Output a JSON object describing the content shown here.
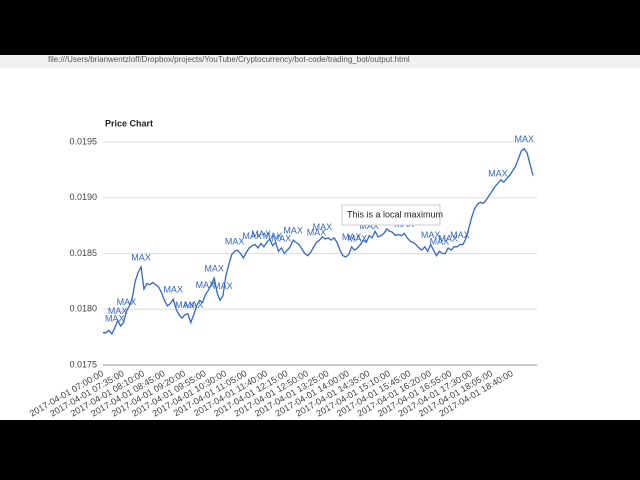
{
  "browser": {
    "url": "file:///Users/brianwentzloff/Dropbox/projects/YouTube/Cryptocurrency/bot-code/trading_bot/output.html"
  },
  "chart_data": {
    "type": "line",
    "title": "Price Chart",
    "tooltip": "This is a local maximum",
    "color": "#3366cc",
    "grid": true,
    "ylim": [
      0.0175,
      0.0195
    ],
    "yticks": [
      0.0175,
      {
        "value": 0.018,
        "label": "0.0180"
      },
      0.0185,
      {
        "value": 0.019,
        "label": "0.0190"
      },
      0.0195
    ],
    "categories": [
      "2017-04-01 07:00:00",
      null,
      null,
      null,
      null,
      null,
      null,
      "2017-04-01 07:35:00",
      null,
      null,
      null,
      null,
      null,
      null,
      "2017-04-01 08:10:00",
      null,
      null,
      null,
      null,
      null,
      null,
      "2017-04-01 08:45:00",
      null,
      null,
      null,
      null,
      null,
      null,
      "2017-04-01 09:20:00",
      null,
      null,
      null,
      null,
      null,
      null,
      "2017-04-01 09:55:00",
      null,
      null,
      null,
      null,
      null,
      null,
      "2017-04-01 10:30:00",
      null,
      null,
      null,
      null,
      null,
      null,
      "2017-04-01 11:05:00",
      null,
      null,
      null,
      null,
      null,
      null,
      "2017-04-01 11:40:00",
      null,
      null,
      null,
      null,
      null,
      null,
      "2017-04-01 12:15:00",
      null,
      null,
      null,
      null,
      null,
      null,
      "2017-04-01 12:50:00",
      null,
      null,
      null,
      null,
      null,
      null,
      "2017-04-01 13:25:00",
      null,
      null,
      null,
      null,
      null,
      null,
      "2017-04-01 14:00:00",
      null,
      null,
      null,
      null,
      null,
      null,
      "2017-04-01 14:35:00",
      null,
      null,
      null,
      null,
      null,
      null,
      "2017-04-01 15:10:00",
      null,
      null,
      null,
      null,
      null,
      null,
      "2017-04-01 15:45:00",
      null,
      null,
      null,
      null,
      null,
      null,
      "2017-04-01 16:20:00",
      null,
      null,
      null,
      null,
      null,
      null,
      "2017-04-01 16:55:00",
      null,
      null,
      null,
      null,
      null,
      null,
      "2017-04-01 17:30:00",
      null,
      null,
      null,
      null,
      null,
      null,
      "2017-04-01 18:05:00",
      null,
      null,
      null,
      null,
      null,
      null,
      "2017-04-01 18:40:00",
      null,
      null,
      null,
      null,
      null,
      null,
      null
    ],
    "values": [
      0.01779,
      0.01779,
      0.01781,
      0.01778,
      0.01783,
      0.0179,
      0.01785,
      0.01788,
      0.01798,
      0.01803,
      0.0181,
      0.01825,
      0.01833,
      0.01838,
      0.01818,
      0.01823,
      0.01822,
      0.01824,
      0.01822,
      0.0182,
      0.01815,
      0.01808,
      0.01803,
      0.01805,
      0.01809,
      0.018,
      0.01795,
      0.01792,
      0.01795,
      0.01796,
      0.01788,
      0.01795,
      0.01803,
      0.01808,
      0.01806,
      0.01813,
      0.01817,
      0.01822,
      0.01828,
      0.01815,
      0.01808,
      0.01812,
      0.0183,
      0.0184,
      0.01849,
      0.01852,
      0.01853,
      0.0185,
      0.01846,
      0.01851,
      0.01855,
      0.01857,
      0.01858,
      0.01855,
      0.01859,
      0.01856,
      0.0186,
      0.01863,
      0.01857,
      0.0186,
      0.01852,
      0.01855,
      0.0185,
      0.01853,
      0.01856,
      0.01862,
      0.0186,
      0.01858,
      0.01854,
      0.0185,
      0.01848,
      0.01851,
      0.01856,
      0.0186,
      0.01862,
      0.01865,
      0.01863,
      0.01864,
      0.01862,
      0.01864,
      0.0186,
      0.01853,
      0.01848,
      0.01847,
      0.01849,
      0.01856,
      0.01853,
      0.01855,
      0.01858,
      0.01862,
      0.0186,
      0.01866,
      0.01864,
      0.0187,
      0.01865,
      0.01866,
      0.01868,
      0.01872,
      0.0187,
      0.01869,
      0.01866,
      0.01867,
      0.01866,
      0.01868,
      0.01864,
      0.01861,
      0.0186,
      0.01858,
      0.01855,
      0.01853,
      0.01856,
      0.01852,
      0.01858,
      0.01853,
      0.01848,
      0.01852,
      0.0185,
      0.0185,
      0.01855,
      0.01853,
      0.01856,
      0.01856,
      0.01858,
      0.01858,
      0.01863,
      0.01872,
      0.01882,
      0.0189,
      0.01894,
      0.01896,
      0.01895,
      0.01898,
      0.01902,
      0.01906,
      0.0191,
      0.01913,
      0.01916,
      0.01914,
      0.01917,
      0.0192,
      0.01924,
      0.01928,
      0.01935,
      0.01942,
      0.01944,
      0.0194,
      0.0193,
      0.0192
    ],
    "annotations": [
      null,
      null,
      null,
      null,
      "MAX",
      "MAX",
      null,
      null,
      "MAX",
      null,
      null,
      null,
      null,
      "MAX",
      null,
      null,
      null,
      null,
      null,
      null,
      null,
      null,
      null,
      null,
      "MAX",
      null,
      null,
      null,
      "MAX",
      null,
      null,
      "MAX",
      null,
      null,
      null,
      "MAX",
      null,
      null,
      "MAX",
      null,
      null,
      "MAX",
      null,
      null,
      null,
      "MAX",
      null,
      null,
      null,
      null,
      null,
      "MAX",
      null,
      null,
      "MAX",
      null,
      null,
      null,
      "MAX",
      null,
      null,
      "MAX",
      null,
      null,
      null,
      "MAX",
      null,
      null,
      null,
      null,
      null,
      null,
      null,
      "MAX",
      null,
      "MAX",
      null,
      null,
      null,
      null,
      null,
      null,
      null,
      null,
      null,
      "MAX",
      null,
      "MAX",
      null,
      null,
      null,
      "MAX",
      null,
      null,
      null,
      null,
      null,
      null,
      null,
      null,
      null,
      null,
      null,
      "MAX",
      null,
      null,
      null,
      null,
      null,
      null,
      null,
      null,
      "MAX",
      null,
      null,
      "MAX",
      null,
      null,
      "MAX",
      null,
      null,
      null,
      "MAX",
      null,
      null,
      null,
      null,
      null,
      null,
      null,
      null,
      null,
      null,
      null,
      null,
      "MAX",
      null,
      null,
      null,
      null,
      null,
      null,
      null,
      null,
      "MAX",
      null,
      null,
      null
    ]
  }
}
